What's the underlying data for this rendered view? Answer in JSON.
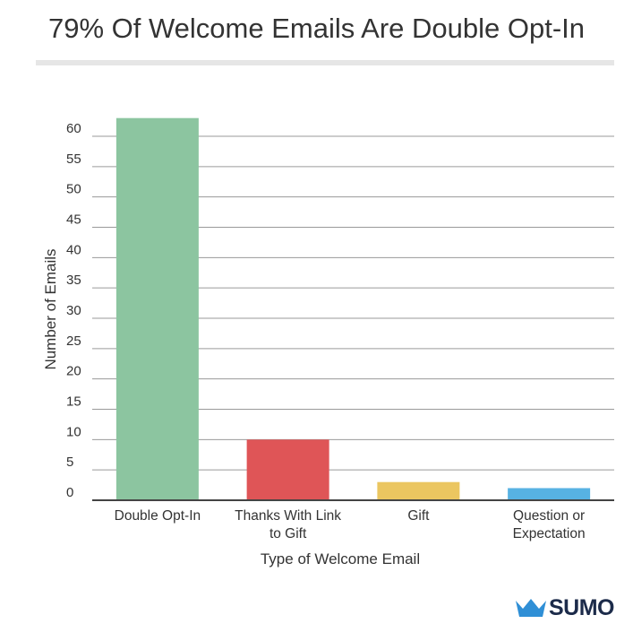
{
  "title": "79% Of Welcome Emails Are Double Opt-In",
  "chart_data": {
    "type": "bar",
    "title": "79% Of Welcome Emails Are Double Opt-In",
    "xlabel": "Type of Welcome Email",
    "ylabel": "Number of Emails",
    "categories": [
      [
        "Double Opt-In"
      ],
      [
        "Thanks With Link",
        "to Gift"
      ],
      [
        "Gift"
      ],
      [
        "Question or",
        "Expectation"
      ]
    ],
    "values": [
      63,
      10,
      3,
      2
    ],
    "colors": [
      "#8cc5a0",
      "#df5557",
      "#ebc660",
      "#57b2e3"
    ],
    "ylim": [
      0,
      60
    ],
    "yticks": [
      0,
      5,
      10,
      15,
      20,
      25,
      30,
      35,
      40,
      45,
      50,
      55,
      60
    ],
    "grid": true
  },
  "logo": {
    "text": "SUMO",
    "icon": "crown-icon",
    "color": "#1c2b4a",
    "icon_color": "#2f8fd6"
  }
}
